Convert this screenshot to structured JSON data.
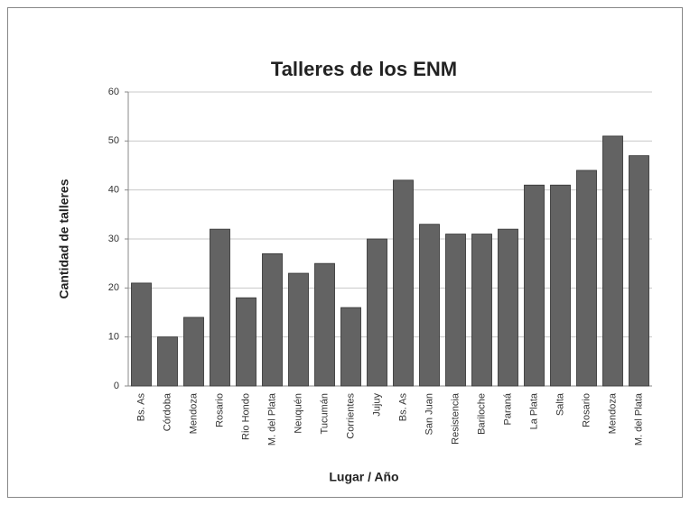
{
  "chart_data": {
    "type": "bar",
    "title": "Talleres de los ENM",
    "x_label": "Lugar / Año",
    "y_label": "Cantidad de talleres",
    "categories": [
      "Bs. As",
      "Córdoba",
      "Mendoza",
      "Rosario",
      "Rio Hondo",
      "M. del Plata",
      "Neuquén",
      "Tucumán",
      "Corrientes",
      "Jujuy",
      "Bs. As",
      "San Juan",
      "Resistencia",
      "Bariloche",
      "Paraná",
      "La Plata",
      "Salta",
      "Rosario",
      "Mendoza",
      "M. del Plata"
    ],
    "values": [
      21,
      10,
      14,
      32,
      18,
      27,
      23,
      25,
      16,
      30,
      42,
      33,
      31,
      31,
      32,
      41,
      41,
      44,
      51,
      47
    ],
    "color": "#636363",
    "ylim": [
      0,
      60
    ],
    "yticks": [
      0,
      10,
      20,
      30,
      40,
      50,
      60
    ],
    "grid": true
  }
}
